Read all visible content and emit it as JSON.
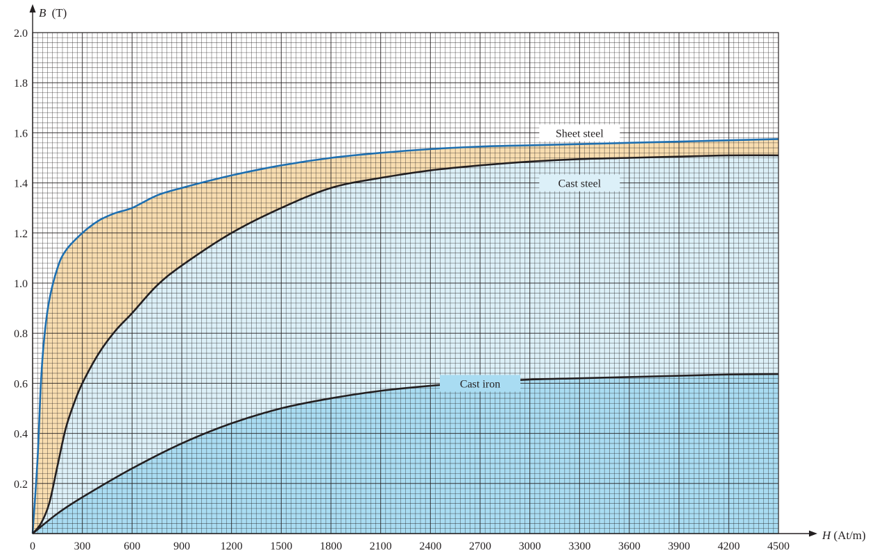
{
  "chart_data": {
    "type": "line",
    "title": "",
    "xlabel": {
      "var": "H",
      "unit": "(At/m)"
    },
    "ylabel": {
      "var": "B",
      "unit": "(T)"
    },
    "xlim": [
      0,
      4500
    ],
    "ylim": [
      0,
      2.0
    ],
    "grid": true,
    "x_ticks": [
      "0",
      "300",
      "600",
      "900",
      "1200",
      "1500",
      "1800",
      "2100",
      "2400",
      "2700",
      "3000",
      "3300",
      "3600",
      "3900",
      "4200",
      "4500"
    ],
    "y_ticks": [
      "0.2",
      "0.4",
      "0.6",
      "0.8",
      "1.0",
      "1.2",
      "1.4",
      "1.6",
      "1.8",
      "2.0"
    ],
    "series": [
      {
        "name": "Sheet steel",
        "color": "#1e6fb0",
        "fill": "#f8ddb0",
        "x": [
          0,
          30,
          50,
          70,
          100,
          150,
          200,
          300,
          400,
          500,
          600,
          750,
          900,
          1200,
          1500,
          1800,
          2100,
          2400,
          2700,
          3000,
          3300,
          3600,
          3900,
          4200,
          4500
        ],
        "y": [
          0,
          0.3,
          0.6,
          0.78,
          0.93,
          1.06,
          1.13,
          1.2,
          1.25,
          1.28,
          1.3,
          1.35,
          1.38,
          1.43,
          1.47,
          1.5,
          1.52,
          1.535,
          1.545,
          1.55,
          1.555,
          1.56,
          1.565,
          1.57,
          1.575
        ]
      },
      {
        "name": "Cast steel",
        "color": "#231f20",
        "fill": "#dcf0f8",
        "x": [
          0,
          50,
          100,
          150,
          200,
          250,
          300,
          400,
          500,
          600,
          750,
          900,
          1200,
          1500,
          1800,
          2100,
          2400,
          2700,
          3000,
          3300,
          3600,
          3900,
          4200,
          4500
        ],
        "y": [
          0,
          0.04,
          0.12,
          0.27,
          0.42,
          0.52,
          0.6,
          0.72,
          0.81,
          0.88,
          0.99,
          1.07,
          1.2,
          1.3,
          1.38,
          1.42,
          1.45,
          1.47,
          1.485,
          1.495,
          1.5,
          1.505,
          1.51,
          1.51
        ]
      },
      {
        "name": "Cast iron",
        "color": "#231f20",
        "fill": "#a9dcf2",
        "x": [
          0,
          150,
          300,
          600,
          900,
          1200,
          1500,
          1800,
          2100,
          2400,
          2700,
          3000,
          3300,
          3600,
          3900,
          4200,
          4500
        ],
        "y": [
          0,
          0.08,
          0.145,
          0.26,
          0.36,
          0.44,
          0.5,
          0.54,
          0.57,
          0.59,
          0.605,
          0.615,
          0.62,
          0.625,
          0.63,
          0.635,
          0.637
        ]
      }
    ],
    "labels": [
      {
        "series": "Sheet steel",
        "x": 3300,
        "y": 1.6
      },
      {
        "series": "Cast steel",
        "x": 3300,
        "y": 1.4
      },
      {
        "series": "Cast iron",
        "x": 2700,
        "y": 0.6
      }
    ]
  }
}
